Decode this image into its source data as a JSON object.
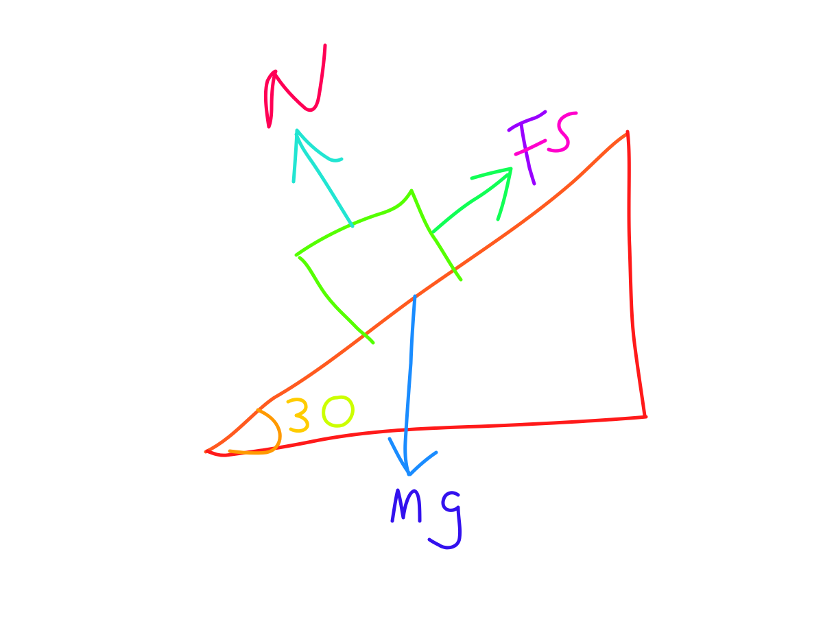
{
  "labels": {
    "normal_force": "N",
    "static_friction": "Fs",
    "weight": "mg",
    "angle": "30"
  },
  "colors": {
    "incline_hypotenuse": "#ff5a1f",
    "incline_sides": "#ff1a1a",
    "block": "#55ff00",
    "normal_arrow": "#22e5d2",
    "normal_label": "#ff0055",
    "friction_arrow": "#11ff55",
    "friction_label_f": "#9900ff",
    "friction_label_s": "#ff00cc",
    "weight_arrow": "#1a8cff",
    "weight_label": "#3311ee",
    "angle_arc": "#ff9900",
    "angle_three": "#ffcc00",
    "angle_zero": "#ccff00"
  }
}
